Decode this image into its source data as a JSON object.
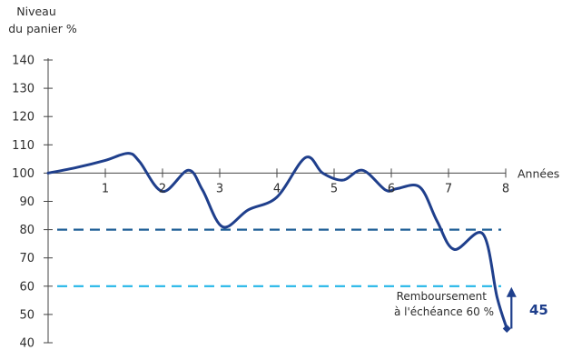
{
  "chart_data": {
    "type": "line",
    "ylabel_line1": "Niveau",
    "ylabel_line2": "du panier %",
    "xlabel": "Années",
    "y_ticks": [
      40,
      50,
      60,
      70,
      80,
      90,
      100,
      110,
      120,
      130,
      140
    ],
    "x_ticks": [
      1,
      2,
      3,
      4,
      5,
      6,
      7,
      8
    ],
    "xlim": [
      0,
      8
    ],
    "ylim": [
      40,
      140
    ],
    "series": [
      {
        "color": "#1f3f8c",
        "x": [
          0,
          0.5,
          1,
          1.4,
          1.6,
          2.0,
          2.45,
          2.7,
          3.05,
          3.5,
          4.0,
          4.5,
          4.8,
          5.15,
          5.5,
          5.9,
          6.1,
          6.5,
          6.8,
          7.1,
          7.6,
          7.85,
          8.02
        ],
        "y": [
          100,
          102,
          104.5,
          107,
          104,
          93.5,
          101,
          94,
          81,
          87,
          91.5,
          105.5,
          100,
          97.5,
          101,
          94,
          94.5,
          95,
          83,
          73,
          78.5,
          56,
          45
        ]
      }
    ],
    "reference_lines": [
      {
        "y": 80,
        "color": "#1f5f96",
        "style": "dashed"
      },
      {
        "y": 60,
        "color": "#22b6e8",
        "style": "dashed"
      }
    ],
    "annotation": {
      "line1": "Remboursement",
      "line2": "à l'échéance 60 %",
      "value_label": "45",
      "arrow_x": 8.1,
      "arrow_from": 45,
      "arrow_to": 60
    }
  }
}
